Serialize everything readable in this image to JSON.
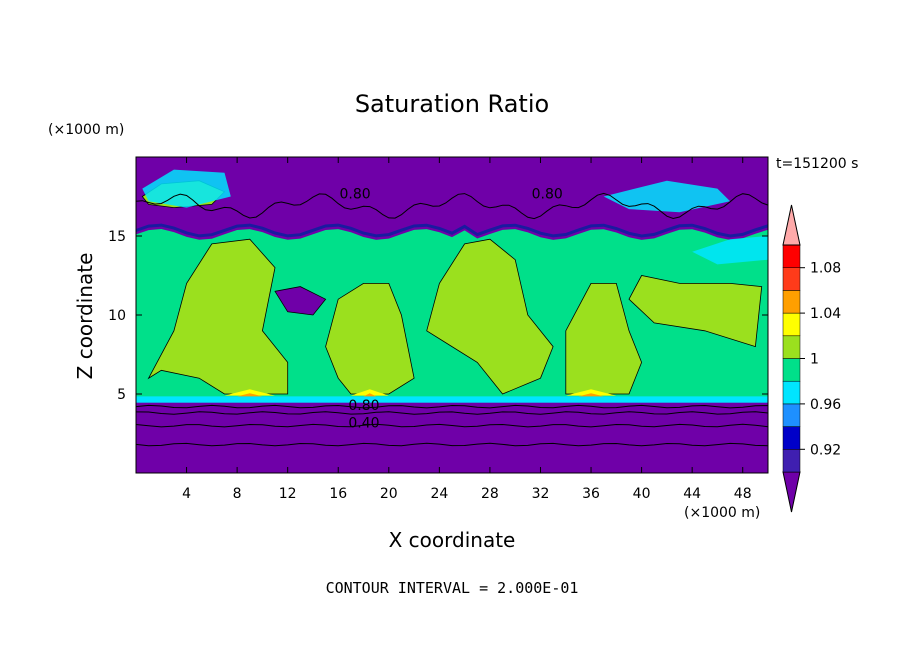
{
  "chart_data": {
    "type": "heatmap",
    "title": "Saturation Ratio",
    "xlabel": "X coordinate",
    "ylabel": "Z coordinate",
    "x_unit": "(×1000 m)",
    "y_unit": "(×1000 m)",
    "time_label": "t=151200 s",
    "footer": "CONTOUR INTERVAL = 2.000E-01",
    "xlim": [
      0,
      50
    ],
    "ylim": [
      0,
      20
    ],
    "x_ticks": [
      "4",
      "8",
      "12",
      "16",
      "20",
      "24",
      "28",
      "32",
      "36",
      "40",
      "44",
      "48"
    ],
    "x_tick_values": [
      4,
      8,
      12,
      16,
      20,
      24,
      28,
      32,
      36,
      40,
      44,
      48
    ],
    "y_ticks": [
      "5",
      "10",
      "15"
    ],
    "y_tick_values": [
      5,
      10,
      15
    ],
    "colorbar": {
      "labels": [
        "0.92",
        "0.96",
        "1",
        "1.04",
        "1.08"
      ],
      "levels": [
        0.92,
        0.96,
        1.0,
        1.04,
        1.08
      ],
      "colors": [
        "#6f00a8",
        "#3f1fb0",
        "#0000c8",
        "#1e90ff",
        "#00e5ff",
        "#00e08a",
        "#9be01e",
        "#ffff00",
        "#ff9f00",
        "#ff3b1a",
        "#ff0000",
        "#ffaaaa"
      ]
    },
    "contour_labels": [
      "0.80",
      "0.80",
      "0.80",
      "0.40"
    ],
    "contour_label_points": [
      [
        16.1,
        17.7
      ],
      [
        31.3,
        17.7
      ],
      [
        16.8,
        4.3
      ],
      [
        16.8,
        3.2
      ]
    ],
    "regions": {
      "lower_dry_layer": {
        "z_top": 4.5,
        "value": 0.6,
        "contour_levels": [
          0.8,
          0.6,
          0.4,
          0.2
        ]
      },
      "near_saturated_layer": {
        "z_range": [
          4.5,
          15.2
        ],
        "value": 0.99
      },
      "supersaturated_columns": {
        "value": 1.01,
        "x_centers": [
          9,
          20,
          29,
          36,
          44
        ]
      },
      "upper_dry_layer": {
        "z_bottom": 15.2,
        "value": 0.7
      }
    }
  },
  "colors": {
    "dry": "#6f00a8",
    "deep_blue": "#1a1aa0",
    "cyan": "#00e5ff",
    "near_sat": "#00e08a",
    "sat": "#9be01e",
    "yellow": "#ffff00",
    "orange": "#ff9f00"
  }
}
